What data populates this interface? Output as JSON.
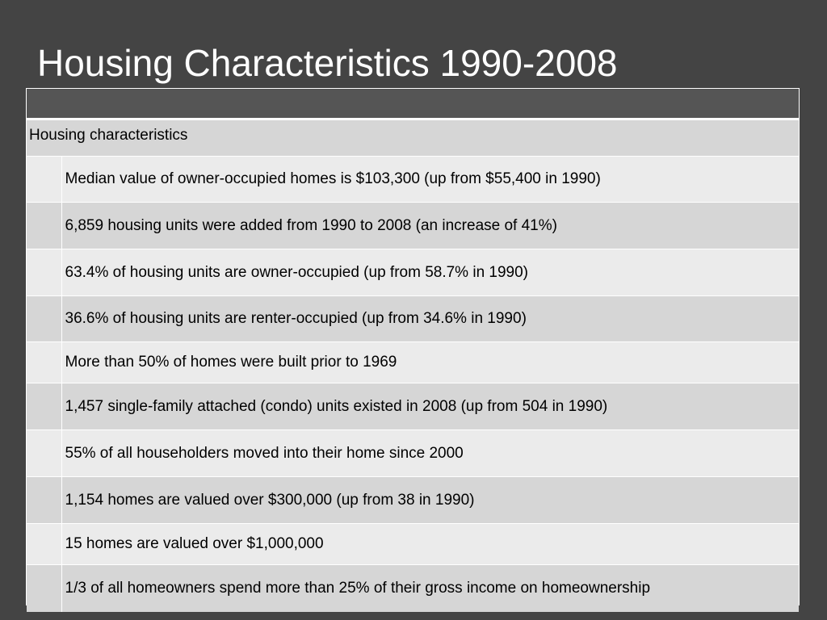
{
  "slide": {
    "title": "Housing Characteristics 1990-2008"
  },
  "table": {
    "section_label": "Housing characteristics",
    "rows": [
      "Median value of owner-occupied homes is $103,300 (up from $55,400 in 1990)",
      "6,859 housing units were added from 1990 to 2008 (an increase of 41%)",
      "63.4% of housing units are owner-occupied (up from 58.7% in 1990)",
      "36.6% of housing units are renter-occupied (up from 34.6% in 1990)",
      "More than 50% of homes were built prior to 1969",
      "1,457 single-family attached (condo) units existed in 2008 (up from 504 in 1990)",
      "55% of all householders moved into their home since 2000",
      "1,154 homes are valued over $300,000 (up from 38 in 1990)",
      "15 homes are valued over $1,000,000",
      "1/3 of all homeowners spend more than 25% of their gross income on homeownership"
    ]
  },
  "colors": {
    "background": "#444444",
    "title_text": "#ffffff",
    "header_band": "#555555",
    "row_light": "#ebebeb",
    "row_dark": "#d6d6d6"
  }
}
